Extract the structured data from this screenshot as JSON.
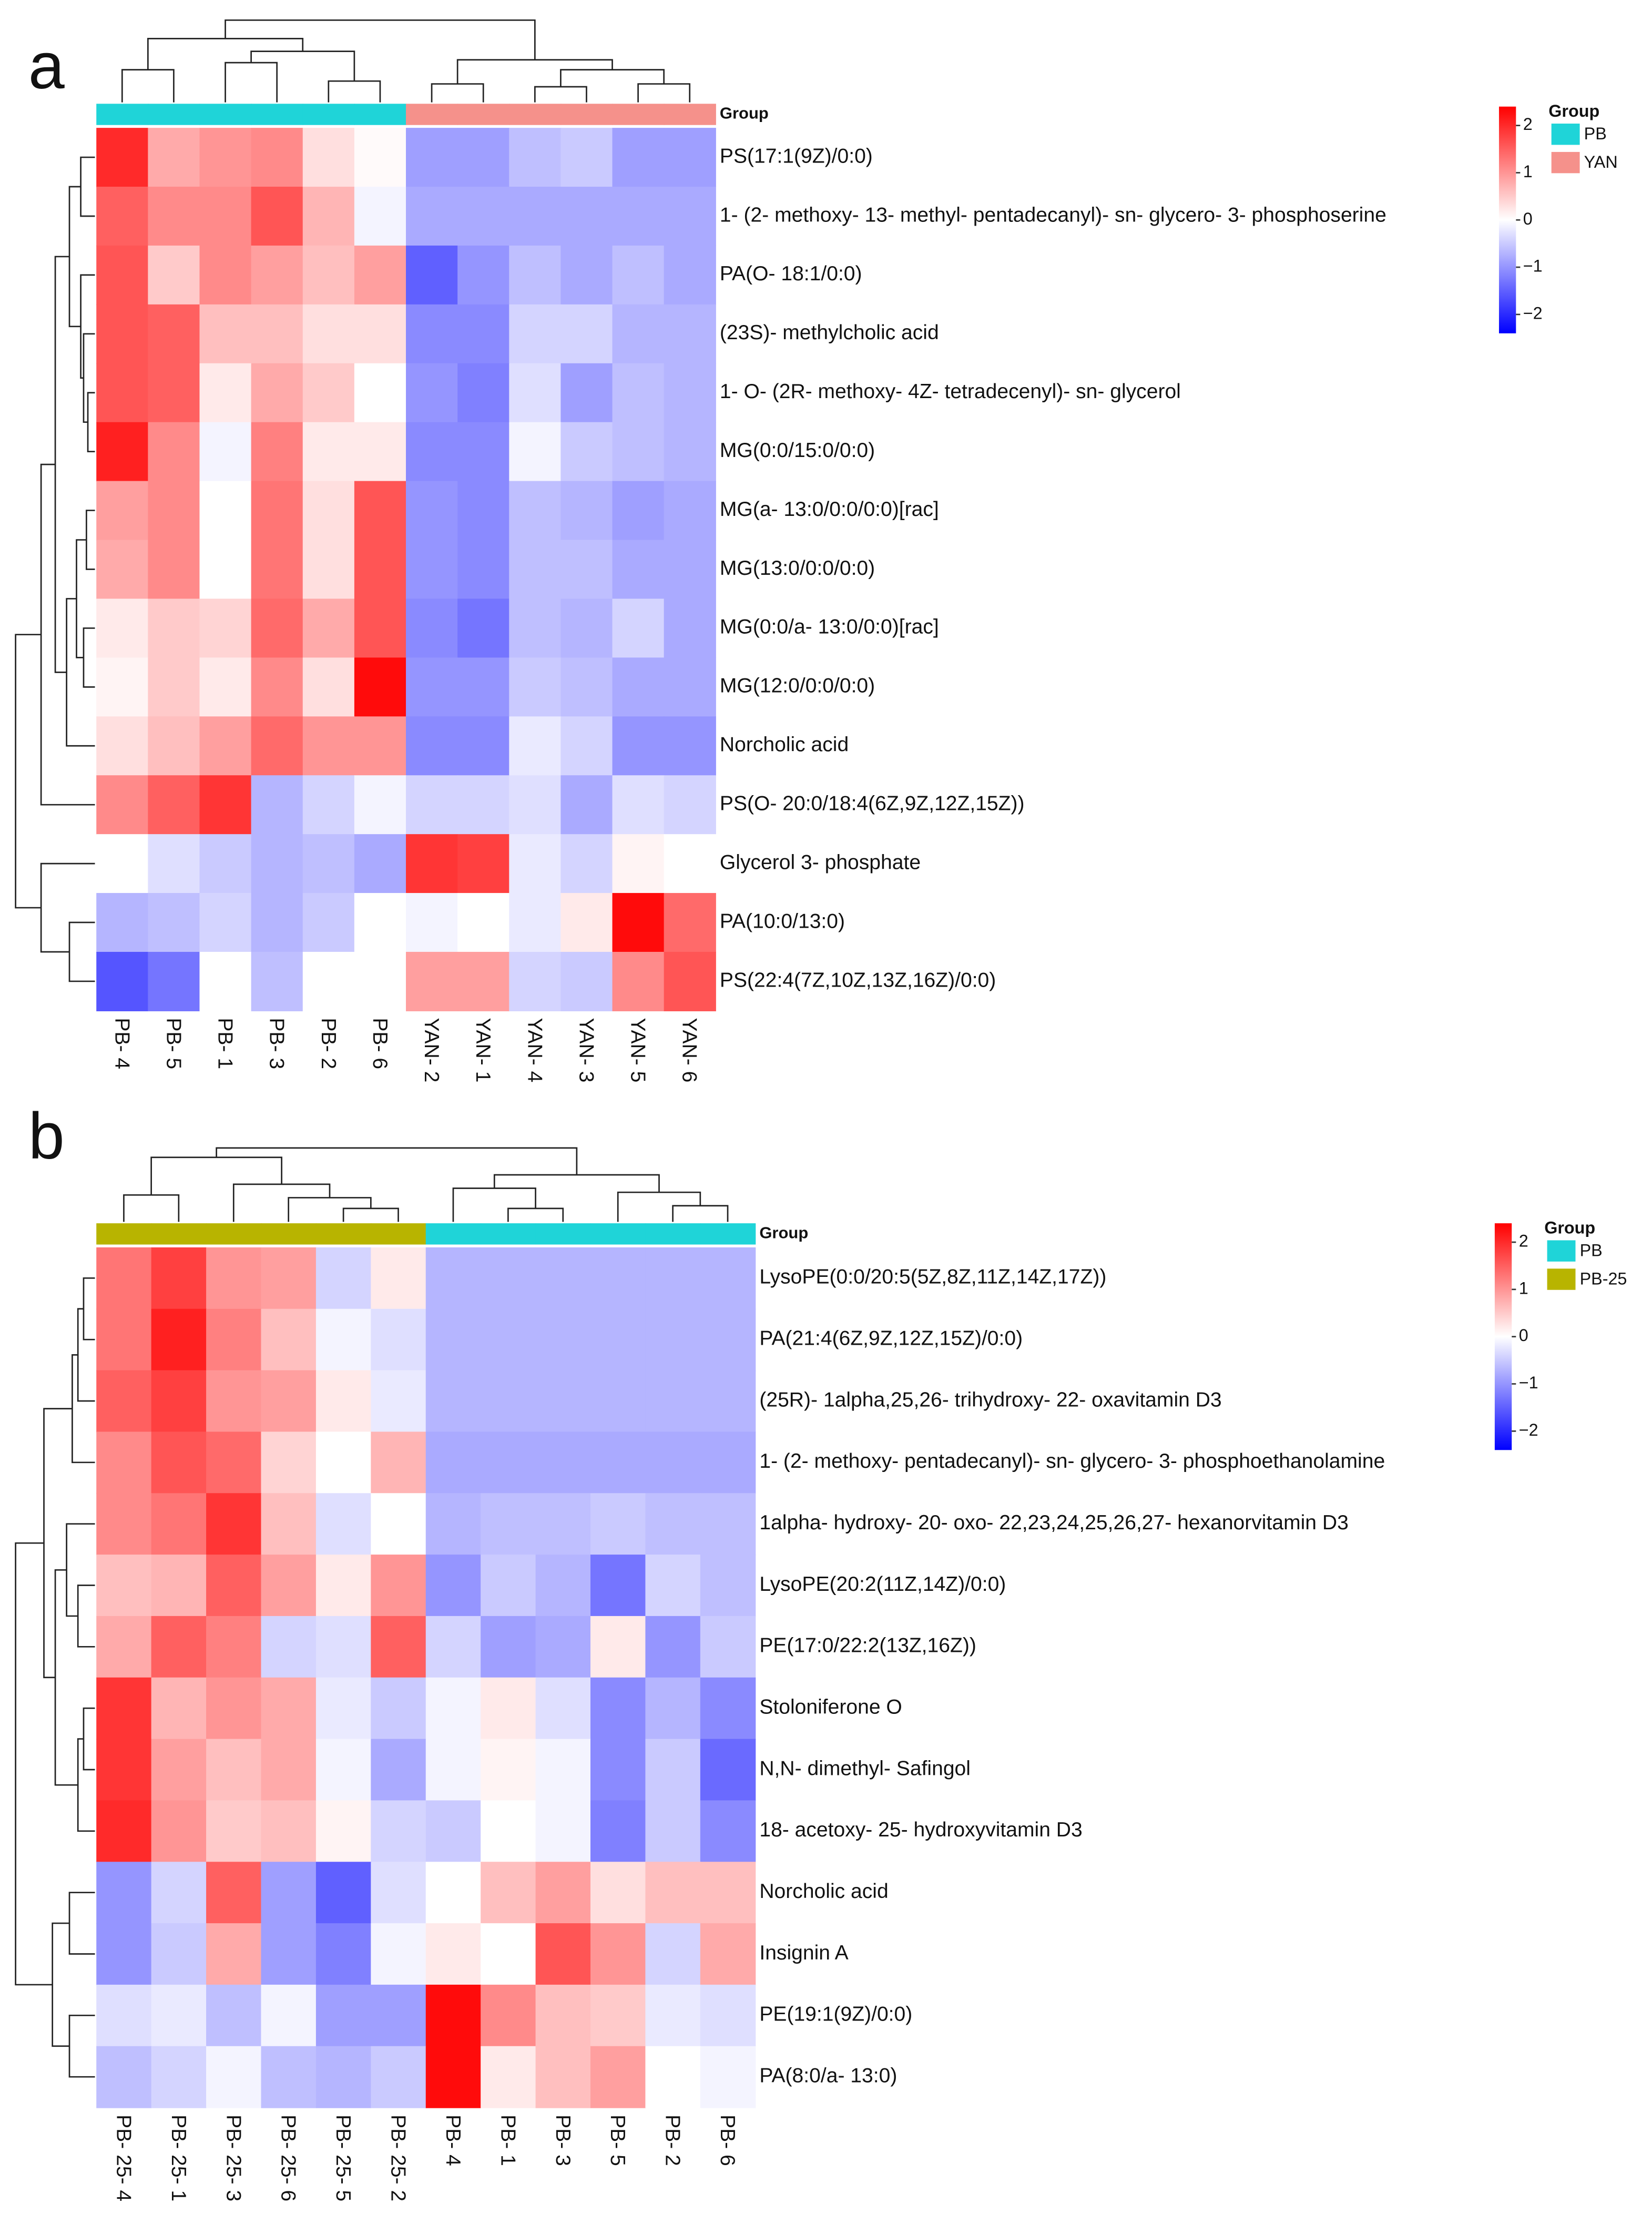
{
  "chart_data": [
    {
      "type": "heatmap",
      "panel_label": "a",
      "group_label": "Group",
      "legend_title": "Group",
      "groups": [
        {
          "name": "PB",
          "color": "#1fd4d8"
        },
        {
          "name": "YAN",
          "color": "#f5918b"
        }
      ],
      "column_groups": [
        0,
        0,
        0,
        0,
        0,
        0,
        1,
        1,
        1,
        1,
        1,
        1
      ],
      "columns": [
        "PB- 4",
        "PB- 5",
        "PB- 1",
        "PB- 3",
        "PB- 2",
        "PB- 6",
        "YAN- 2",
        "YAN- 1",
        "YAN- 4",
        "YAN- 3",
        "YAN- 5",
        "YAN- 6"
      ],
      "rows": [
        "PS(17:1(9Z)/0:0)",
        "1- (2- methoxy- 13- methyl- pentadecanyl)- sn- glycero- 3- phosphoserine",
        "PA(O- 18:1/0:0)",
        "(23S)- methylcholic acid",
        "1- O- (2R- methoxy- 4Z- tetradecenyl)- sn- glycerol",
        "MG(0:0/15:0/0:0)",
        "MG(a- 13:0/0:0/0:0)[rac]",
        "MG(13:0/0:0/0:0)",
        "MG(0:0/a- 13:0/0:0)[rac]",
        "MG(12:0/0:0/0:0)",
        "Norcholic acid",
        "PS(O- 20:0/18:4(6Z,9Z,12Z,15Z))",
        "Glycerol 3- phosphate",
        "PA(10:0/13:0)",
        "PS(22:4(7Z,10Z,13Z,16Z)/0:0)"
      ],
      "values": [
        [
          2.0,
          0.8,
          1.0,
          1.1,
          0.3,
          0.05,
          -0.9,
          -0.9,
          -0.6,
          -0.5,
          -0.9,
          -0.9
        ],
        [
          1.5,
          1.1,
          1.1,
          1.6,
          0.7,
          -0.1,
          -0.8,
          -0.8,
          -0.8,
          -0.8,
          -0.8,
          -0.8
        ],
        [
          1.6,
          0.5,
          1.1,
          0.9,
          0.6,
          0.9,
          -1.5,
          -1.0,
          -0.6,
          -0.8,
          -0.6,
          -0.8
        ],
        [
          1.6,
          1.5,
          0.6,
          0.6,
          0.3,
          0.3,
          -1.1,
          -1.1,
          -0.4,
          -0.4,
          -0.7,
          -0.7
        ],
        [
          1.6,
          1.5,
          0.2,
          0.8,
          0.5,
          0.0,
          -1.0,
          -1.2,
          -0.3,
          -0.9,
          -0.6,
          -0.7
        ],
        [
          2.1,
          1.1,
          -0.1,
          1.2,
          0.2,
          0.2,
          -1.1,
          -1.1,
          -0.1,
          -0.5,
          -0.6,
          -0.7
        ],
        [
          0.9,
          1.1,
          0.0,
          1.3,
          0.3,
          1.6,
          -1.0,
          -1.1,
          -0.6,
          -0.7,
          -0.9,
          -0.8
        ],
        [
          0.8,
          1.1,
          0.0,
          1.3,
          0.3,
          1.6,
          -1.0,
          -1.1,
          -0.6,
          -0.6,
          -0.8,
          -0.8
        ],
        [
          0.2,
          0.5,
          0.4,
          1.4,
          0.8,
          1.6,
          -1.1,
          -1.3,
          -0.6,
          -0.7,
          -0.4,
          -0.8
        ],
        [
          0.1,
          0.5,
          0.2,
          1.1,
          0.3,
          2.3,
          -1.0,
          -1.0,
          -0.5,
          -0.6,
          -0.8,
          -0.8
        ],
        [
          0.3,
          0.6,
          0.9,
          1.4,
          1.0,
          1.0,
          -1.1,
          -1.1,
          -0.2,
          -0.4,
          -1.0,
          -1.0
        ],
        [
          1.1,
          1.5,
          1.9,
          -0.7,
          -0.4,
          -0.1,
          -0.4,
          -0.4,
          -0.3,
          -0.8,
          -0.3,
          -0.4
        ],
        [
          0.0,
          -0.3,
          -0.5,
          -0.7,
          -0.6,
          -0.8,
          1.9,
          1.8,
          -0.2,
          -0.4,
          0.1,
          0.0
        ],
        [
          -0.7,
          -0.6,
          -0.4,
          -0.7,
          -0.5,
          0.0,
          -0.1,
          0.0,
          -0.2,
          0.2,
          2.3,
          1.4
        ],
        [
          -1.6,
          -1.3,
          0.0,
          -0.6,
          0.0,
          0.0,
          0.9,
          0.9,
          -0.4,
          -0.5,
          1.1,
          1.6
        ]
      ],
      "clim": [
        -2.4,
        2.4
      ],
      "colorbar_ticks": [
        {
          "value": -2,
          "label": "−2"
        },
        {
          "value": -1,
          "label": "−1"
        },
        0,
        1,
        2
      ]
    },
    {
      "type": "heatmap",
      "panel_label": "b",
      "group_label": "Group",
      "legend_title": "Group",
      "groups": [
        {
          "name": "PB",
          "color": "#1fd4d8"
        },
        {
          "name": "PB-25",
          "color": "#b8b400"
        }
      ],
      "column_groups": [
        1,
        1,
        1,
        1,
        1,
        1,
        0,
        0,
        0,
        0,
        0,
        0
      ],
      "columns": [
        "PB- 25- 4",
        "PB- 25- 1",
        "PB- 25- 3",
        "PB- 25- 6",
        "PB- 25- 5",
        "PB- 25- 2",
        "PB- 4",
        "PB- 1",
        "PB- 3",
        "PB- 5",
        "PB- 2",
        "PB- 6"
      ],
      "rows": [
        "LysoPE(0:0/20:5(5Z,8Z,11Z,14Z,17Z))",
        "PA(21:4(6Z,9Z,12Z,15Z)/0:0)",
        "(25R)- 1alpha,25,26- trihydroxy- 22- oxavitamin D3",
        "1- (2- methoxy- pentadecanyl)- sn- glycero- 3- phosphoethanolamine",
        "1alpha- hydroxy- 20- oxo- 22,23,24,25,26,27- hexanorvitamin D3",
        "LysoPE(20:2(11Z,14Z)/0:0)",
        "PE(17:0/22:2(13Z,16Z))",
        "Stoloniferone O",
        "N,N- dimethyl- Safingol",
        "18- acetoxy- 25- hydroxyvitamin D3",
        "Norcholic acid",
        "Insignin A",
        "PE(19:1(9Z)/0:0)",
        "PA(8:0/a- 13:0)"
      ],
      "values": [
        [
          1.3,
          1.8,
          1.0,
          0.9,
          -0.4,
          0.2,
          -0.7,
          -0.7,
          -0.7,
          -0.7,
          -0.7,
          -0.7
        ],
        [
          1.3,
          2.1,
          1.2,
          0.6,
          -0.1,
          -0.3,
          -0.7,
          -0.7,
          -0.7,
          -0.7,
          -0.7,
          -0.7
        ],
        [
          1.5,
          1.8,
          1.0,
          0.9,
          0.2,
          -0.2,
          -0.7,
          -0.7,
          -0.7,
          -0.7,
          -0.7,
          -0.7
        ],
        [
          1.1,
          1.6,
          1.4,
          0.4,
          0.0,
          0.7,
          -0.8,
          -0.8,
          -0.8,
          -0.8,
          -0.8,
          -0.8
        ],
        [
          1.1,
          1.3,
          1.9,
          0.6,
          -0.3,
          0.0,
          -0.7,
          -0.6,
          -0.6,
          -0.5,
          -0.6,
          -0.6
        ],
        [
          0.6,
          0.7,
          1.5,
          0.9,
          0.2,
          1.0,
          -1.0,
          -0.5,
          -0.7,
          -1.3,
          -0.4,
          -0.6
        ],
        [
          0.8,
          1.5,
          1.2,
          -0.4,
          -0.3,
          1.5,
          -0.4,
          -0.9,
          -0.8,
          0.2,
          -1.0,
          -0.5
        ],
        [
          1.9,
          0.7,
          1.0,
          0.8,
          -0.2,
          -0.5,
          -0.1,
          0.2,
          -0.3,
          -1.1,
          -0.7,
          -1.1
        ],
        [
          1.9,
          0.9,
          0.6,
          0.8,
          -0.1,
          -0.8,
          -0.1,
          0.1,
          -0.1,
          -1.1,
          -0.5,
          -1.4
        ],
        [
          2.0,
          1.0,
          0.5,
          0.6,
          0.1,
          -0.4,
          -0.5,
          0.0,
          -0.1,
          -1.2,
          -0.5,
          -1.1
        ],
        [
          -1.0,
          -0.4,
          1.5,
          -0.9,
          -1.5,
          -0.3,
          0.0,
          0.6,
          0.9,
          0.3,
          0.6,
          0.6
        ],
        [
          -1.0,
          -0.5,
          0.8,
          -0.9,
          -1.2,
          -0.1,
          0.2,
          0.0,
          1.6,
          1.0,
          -0.4,
          0.8
        ],
        [
          -0.3,
          -0.2,
          -0.6,
          -0.1,
          -0.9,
          -0.9,
          2.3,
          1.1,
          0.6,
          0.5,
          -0.2,
          -0.3
        ],
        [
          -0.6,
          -0.4,
          -0.1,
          -0.6,
          -0.7,
          -0.5,
          2.3,
          0.2,
          0.6,
          0.9,
          0.0,
          -0.1
        ]
      ],
      "clim": [
        -2.4,
        2.4
      ],
      "colorbar_ticks": [
        {
          "value": -2,
          "label": "−2"
        },
        {
          "value": -1,
          "label": "−1"
        },
        0,
        1,
        2
      ]
    }
  ]
}
